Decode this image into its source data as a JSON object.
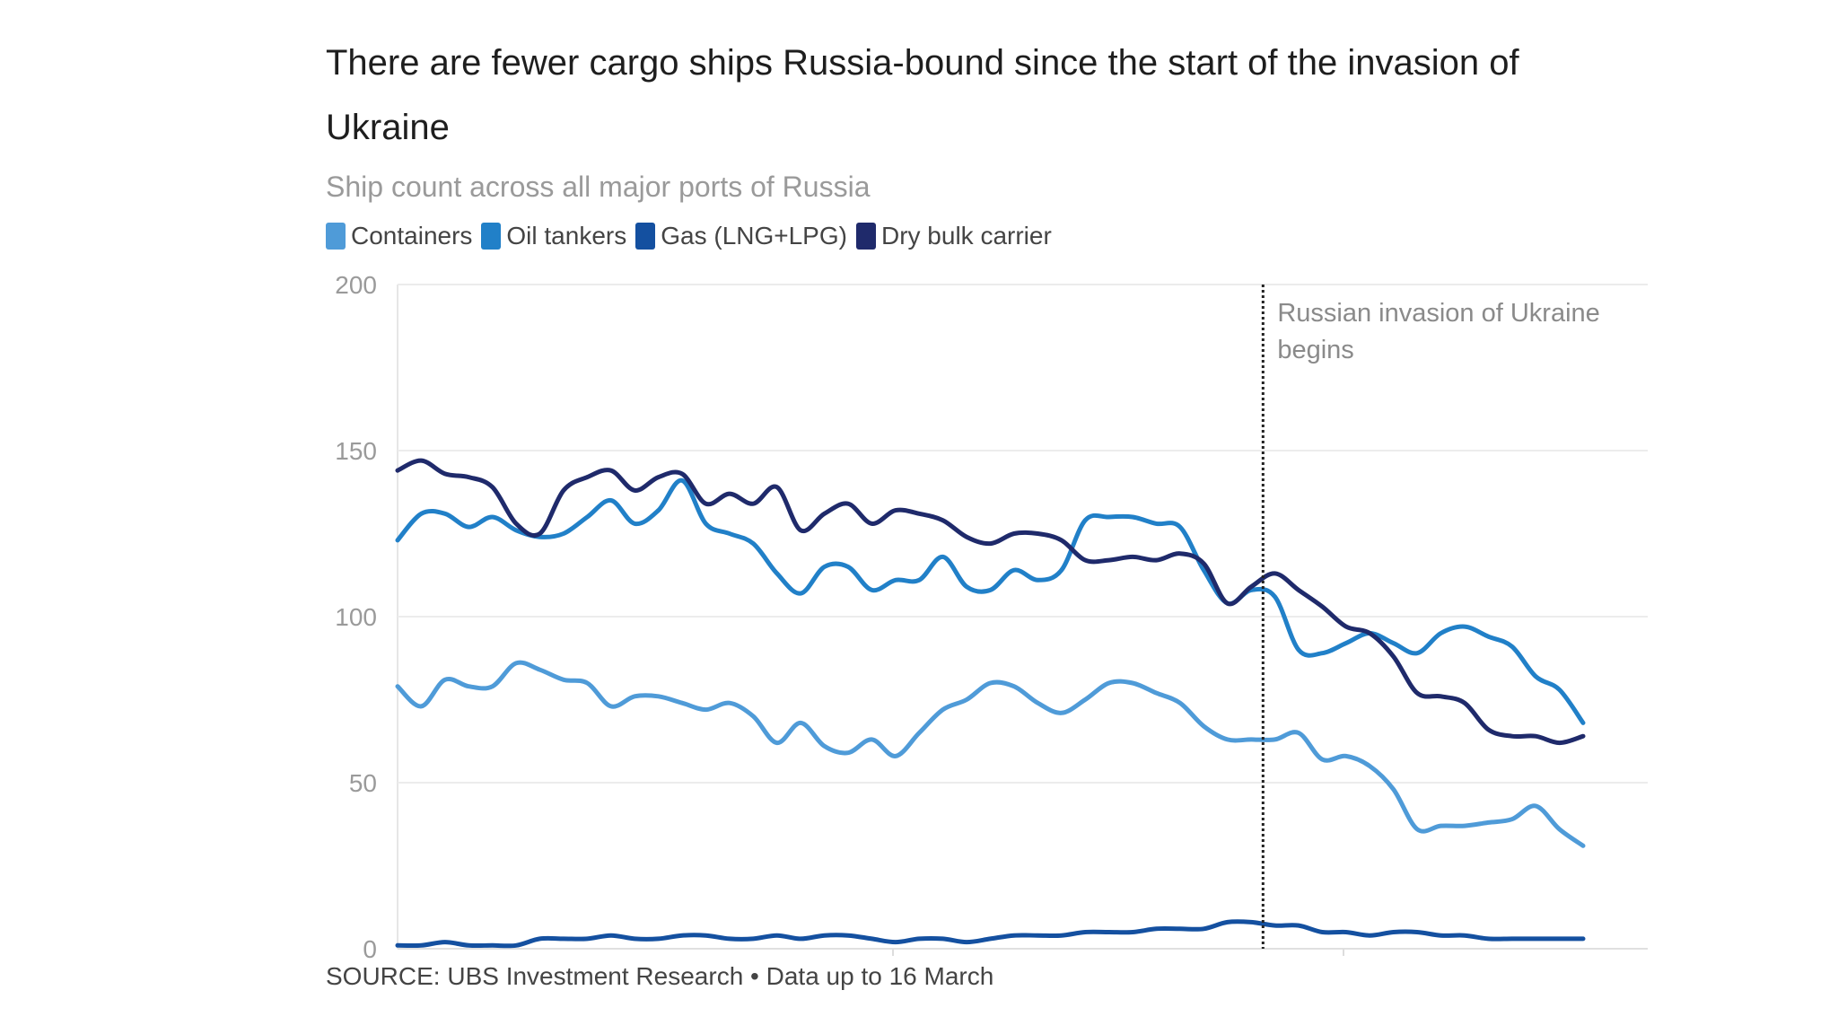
{
  "chart_data": {
    "type": "line",
    "title": "There are fewer cargo ships Russia-bound since the start of the invasion of Ukraine",
    "subtitle": "Ship count across all major ports of Russia",
    "xlabel": "",
    "ylabel": "",
    "ylim": [
      0,
      200
    ],
    "yticks": [
      "0",
      "50",
      "100",
      "150",
      "200"
    ],
    "grid": true,
    "legend_position": "top-left",
    "series": [
      {
        "name": "Containers",
        "color": "#4f9bd8",
        "values": [
          79,
          73,
          81,
          79,
          79,
          86,
          84,
          81,
          80,
          73,
          76,
          76,
          74,
          72,
          74,
          70,
          62,
          68,
          61,
          59,
          63,
          58,
          65,
          72,
          75,
          80,
          79,
          74,
          71,
          75,
          80,
          80,
          77,
          74,
          67,
          63,
          63,
          63,
          65,
          57,
          58,
          55,
          48,
          36,
          37,
          37,
          38,
          39,
          43,
          36,
          31
        ]
      },
      {
        "name": "Oil tankers",
        "color": "#2180c8",
        "values": [
          123,
          131,
          131,
          127,
          130,
          126,
          124,
          125,
          130,
          135,
          128,
          132,
          141,
          128,
          125,
          122,
          113,
          107,
          115,
          115,
          108,
          111,
          111,
          118,
          109,
          108,
          114,
          111,
          114,
          129,
          130,
          130,
          128,
          127,
          114,
          104,
          108,
          106,
          90,
          89,
          92,
          95,
          92,
          89,
          95,
          97,
          94,
          91,
          82,
          78,
          68
        ]
      },
      {
        "name": "Gas (LNG+LPG)",
        "color": "#1450a0",
        "values": [
          1,
          1,
          2,
          1,
          1,
          1,
          3,
          3,
          3,
          4,
          3,
          3,
          4,
          4,
          3,
          3,
          4,
          3,
          4,
          4,
          3,
          2,
          3,
          3,
          2,
          3,
          4,
          4,
          4,
          5,
          5,
          5,
          6,
          6,
          6,
          8,
          8,
          7,
          7,
          5,
          5,
          4,
          5,
          5,
          4,
          4,
          3,
          3,
          3,
          3,
          3
        ]
      },
      {
        "name": "Dry bulk carrier",
        "color": "#1f2a6b",
        "values": [
          144,
          147,
          143,
          142,
          139,
          128,
          125,
          138,
          142,
          144,
          138,
          142,
          143,
          134,
          137,
          134,
          139,
          126,
          131,
          134,
          128,
          132,
          131,
          129,
          124,
          122,
          125,
          125,
          123,
          117,
          117,
          118,
          117,
          119,
          116,
          104,
          109,
          113,
          108,
          103,
          97,
          95,
          88,
          77,
          76,
          74,
          66,
          64,
          64,
          62,
          64
        ]
      }
    ],
    "annotation": {
      "text_line1": "Russian invasion of Ukraine",
      "text_line2": "begins",
      "x_index": 36.5
    },
    "source": "SOURCE: UBS Investment Research • Data up to 16 March"
  }
}
